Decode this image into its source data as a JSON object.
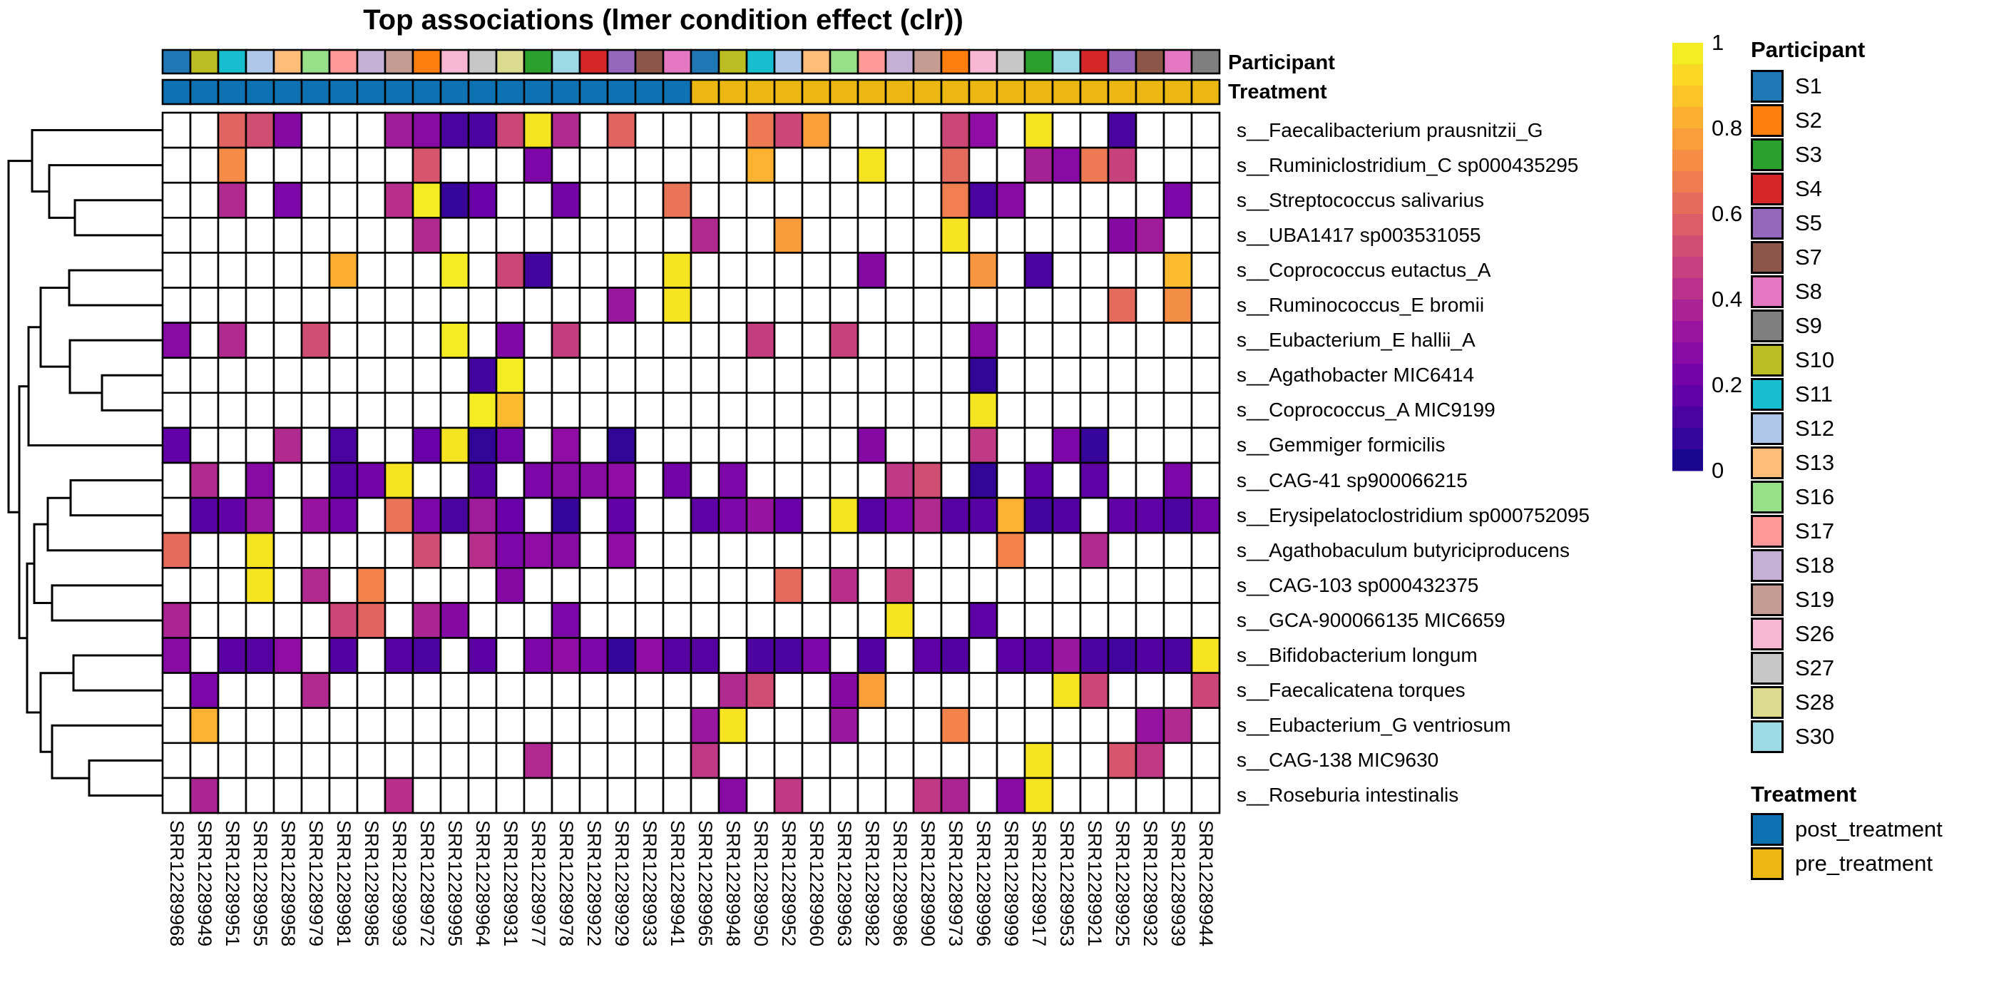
{
  "title": "Top associations (lmer condition effect (clr))",
  "annotations": {
    "participant_label": "Participant",
    "treatment_label": "Treatment",
    "column_participants": [
      "S1",
      "S10",
      "S11",
      "S12",
      "S13",
      "S16",
      "S17",
      "S18",
      "S19",
      "S2",
      "S26",
      "S27",
      "S28",
      "S3",
      "S30",
      "S4",
      "S5",
      "S7",
      "S8",
      "S1",
      "S10",
      "S11",
      "S12",
      "S13",
      "S16",
      "S17",
      "S18",
      "S19",
      "S2",
      "S26",
      "S27",
      "S3",
      "S30",
      "S4",
      "S5",
      "S7",
      "S8",
      "S9"
    ],
    "column_treatments": [
      "post_treatment",
      "post_treatment",
      "post_treatment",
      "post_treatment",
      "post_treatment",
      "post_treatment",
      "post_treatment",
      "post_treatment",
      "post_treatment",
      "post_treatment",
      "post_treatment",
      "post_treatment",
      "post_treatment",
      "post_treatment",
      "post_treatment",
      "post_treatment",
      "post_treatment",
      "post_treatment",
      "post_treatment",
      "pre_treatment",
      "pre_treatment",
      "pre_treatment",
      "pre_treatment",
      "pre_treatment",
      "pre_treatment",
      "pre_treatment",
      "pre_treatment",
      "pre_treatment",
      "pre_treatment",
      "pre_treatment",
      "pre_treatment",
      "pre_treatment",
      "pre_treatment",
      "pre_treatment",
      "pre_treatment",
      "pre_treatment",
      "pre_treatment",
      "pre_treatment"
    ]
  },
  "chart_data": {
    "type": "heatmap",
    "title": "Top associations (lmer condition effect (clr))",
    "colormap": "plasma",
    "value_range": [
      0,
      1
    ],
    "na_color": "#ffffff",
    "colormap_stops": [
      "#0d0887",
      "#41049d",
      "#6a00a8",
      "#8f0da4",
      "#b12a90",
      "#cc4778",
      "#e16462",
      "#f2844b",
      "#fca636",
      "#fcce25",
      "#f0f921"
    ],
    "columns": [
      "SRR12289968",
      "SRR12289949",
      "SRR12289951",
      "SRR12289955",
      "SRR12289958",
      "SRR12289979",
      "SRR12289981",
      "SRR12289985",
      "SRR12289993",
      "SRR12289972",
      "SRR12289995",
      "SRR12289964",
      "SRR12289931",
      "SRR12289977",
      "SRR12289978",
      "SRR12289922",
      "SRR12289929",
      "SRR12289933",
      "SRR12289941",
      "SRR12289965",
      "SRR12289948",
      "SRR12289950",
      "SRR12289952",
      "SRR12289960",
      "SRR12289963",
      "SRR12289982",
      "SRR12289986",
      "SRR12289990",
      "SRR12289973",
      "SRR12289996",
      "SRR12289999",
      "SRR12289917",
      "SRR12289953",
      "SRR12289921",
      "SRR12289925",
      "SRR12289932",
      "SRR12289939",
      "SRR12289944"
    ],
    "rows": [
      "s__Faecalibacterium prausnitzii_G",
      "s__Ruminiclostridium_C sp000435295",
      "s__Streptococcus salivarius",
      "s__UBA1417 sp003531055",
      "s__Coprococcus eutactus_A",
      "s__Ruminococcus_E bromii",
      "s__Eubacterium_E hallii_A",
      "s__Agathobacter MIC6414",
      "s__Coprococcus_A MIC9199",
      "s__Gemmiger formicilis",
      "s__CAG-41 sp900066215",
      "s__Erysipelatoclostridium sp000752095",
      "s__Agathobaculum butyriciproducens",
      "s__CAG-103 sp000432375",
      "s__GCA-900066135 MIC6659",
      "s__Bifidobacterium longum",
      "s__Faecalicatena torques",
      "s__Eubacterium_G ventriosum",
      "s__CAG-138 MIC9630",
      "s__Roseburia intestinalis"
    ],
    "matrix": [
      [
        null,
        null,
        0.6,
        0.52,
        0.27,
        null,
        null,
        null,
        0.35,
        0.28,
        0.12,
        0.13,
        0.5,
        0.95,
        0.4,
        null,
        0.6,
        null,
        null,
        null,
        null,
        0.67,
        0.5,
        0.78,
        null,
        null,
        null,
        null,
        0.5,
        0.3,
        null,
        0.95,
        null,
        null,
        0.12,
        null,
        null,
        null
      ],
      [
        null,
        null,
        0.72,
        null,
        null,
        null,
        null,
        null,
        null,
        0.55,
        null,
        null,
        null,
        0.25,
        null,
        null,
        null,
        null,
        null,
        null,
        null,
        0.83,
        null,
        null,
        null,
        0.95,
        null,
        null,
        0.62,
        null,
        null,
        0.37,
        0.28,
        0.67,
        0.48,
        null,
        null,
        null
      ],
      [
        null,
        null,
        0.4,
        null,
        0.25,
        null,
        null,
        null,
        0.42,
        0.97,
        0.08,
        0.2,
        null,
        null,
        0.23,
        null,
        null,
        null,
        0.65,
        null,
        null,
        null,
        null,
        null,
        null,
        null,
        null,
        null,
        0.68,
        0.12,
        0.28,
        null,
        null,
        null,
        null,
        null,
        0.25,
        null
      ],
      [
        null,
        null,
        null,
        null,
        null,
        null,
        null,
        null,
        null,
        0.4,
        null,
        null,
        null,
        null,
        null,
        null,
        null,
        null,
        null,
        0.4,
        null,
        null,
        0.77,
        null,
        null,
        null,
        null,
        null,
        0.95,
        null,
        null,
        null,
        null,
        null,
        0.27,
        0.35,
        null,
        null
      ],
      [
        null,
        null,
        null,
        null,
        null,
        null,
        0.82,
        null,
        null,
        null,
        0.97,
        null,
        0.5,
        0.1,
        null,
        null,
        null,
        null,
        0.95,
        null,
        null,
        null,
        null,
        null,
        null,
        0.27,
        null,
        null,
        null,
        0.75,
        null,
        0.12,
        null,
        null,
        null,
        null,
        0.85,
        null
      ],
      [
        null,
        null,
        null,
        null,
        null,
        null,
        null,
        null,
        null,
        null,
        null,
        null,
        null,
        null,
        null,
        null,
        0.33,
        null,
        0.95,
        null,
        null,
        null,
        null,
        null,
        null,
        null,
        null,
        null,
        null,
        null,
        null,
        null,
        null,
        null,
        0.62,
        null,
        0.73,
        null
      ],
      [
        0.28,
        null,
        0.4,
        null,
        null,
        0.52,
        null,
        null,
        null,
        null,
        0.97,
        null,
        0.26,
        null,
        0.47,
        null,
        null,
        null,
        null,
        null,
        null,
        0.47,
        null,
        null,
        0.48,
        null,
        null,
        null,
        null,
        0.28,
        null,
        null,
        null,
        null,
        null,
        null,
        null,
        null
      ],
      [
        null,
        null,
        null,
        null,
        null,
        null,
        null,
        null,
        null,
        null,
        null,
        0.1,
        0.97,
        null,
        null,
        null,
        null,
        null,
        null,
        null,
        null,
        null,
        null,
        null,
        null,
        null,
        null,
        null,
        null,
        0.07,
        null,
        null,
        null,
        null,
        null,
        null,
        null,
        null
      ],
      [
        null,
        null,
        null,
        null,
        null,
        null,
        null,
        null,
        null,
        null,
        null,
        0.97,
        0.85,
        null,
        null,
        null,
        null,
        null,
        null,
        null,
        null,
        null,
        null,
        null,
        null,
        null,
        null,
        null,
        null,
        0.95,
        null,
        null,
        null,
        null,
        null,
        null,
        null,
        null
      ],
      [
        0.18,
        null,
        null,
        null,
        0.4,
        null,
        0.12,
        null,
        null,
        0.2,
        0.95,
        0.07,
        0.22,
        null,
        0.3,
        null,
        0.07,
        null,
        null,
        null,
        null,
        null,
        null,
        null,
        null,
        0.27,
        null,
        null,
        null,
        0.45,
        null,
        null,
        0.25,
        0.08,
        null,
        null,
        null,
        null
      ],
      [
        null,
        0.4,
        null,
        0.28,
        null,
        null,
        0.15,
        0.22,
        0.95,
        null,
        null,
        0.15,
        null,
        0.25,
        0.28,
        0.28,
        0.3,
        null,
        0.22,
        null,
        0.25,
        null,
        null,
        null,
        null,
        null,
        0.45,
        0.52,
        null,
        0.07,
        null,
        0.17,
        null,
        0.17,
        null,
        null,
        0.25,
        null
      ],
      [
        null,
        0.15,
        0.18,
        0.33,
        null,
        0.32,
        0.22,
        null,
        0.65,
        0.25,
        0.12,
        0.35,
        0.2,
        null,
        0.08,
        null,
        0.18,
        null,
        null,
        0.17,
        0.25,
        0.32,
        0.2,
        null,
        0.95,
        0.15,
        0.25,
        0.4,
        0.15,
        0.15,
        0.83,
        0.1,
        0.14,
        null,
        0.18,
        0.17,
        0.13,
        0.22
      ],
      [
        0.62,
        null,
        null,
        0.95,
        null,
        null,
        null,
        null,
        null,
        0.52,
        null,
        0.42,
        0.25,
        0.3,
        0.28,
        null,
        0.3,
        null,
        null,
        null,
        null,
        null,
        null,
        null,
        null,
        null,
        null,
        null,
        null,
        null,
        0.7,
        null,
        null,
        0.4,
        null,
        null,
        null,
        null
      ],
      [
        null,
        null,
        null,
        0.95,
        null,
        0.4,
        null,
        0.7,
        null,
        null,
        null,
        null,
        0.27,
        null,
        null,
        null,
        null,
        null,
        null,
        null,
        null,
        null,
        0.62,
        null,
        0.42,
        null,
        0.48,
        null,
        null,
        null,
        null,
        null,
        null,
        null,
        null,
        null,
        null,
        null
      ],
      [
        0.38,
        null,
        null,
        null,
        null,
        null,
        0.5,
        0.6,
        null,
        0.38,
        0.27,
        null,
        null,
        null,
        0.25,
        null,
        null,
        null,
        null,
        null,
        null,
        null,
        null,
        null,
        null,
        null,
        0.95,
        null,
        null,
        0.17,
        null,
        null,
        null,
        null,
        null,
        null,
        null,
        null
      ],
      [
        0.28,
        null,
        0.16,
        0.15,
        0.3,
        null,
        0.14,
        null,
        0.15,
        0.13,
        null,
        0.16,
        null,
        0.25,
        0.3,
        0.25,
        0.08,
        0.3,
        0.15,
        0.15,
        null,
        0.13,
        0.13,
        0.25,
        null,
        0.14,
        null,
        0.17,
        0.14,
        null,
        0.16,
        0.15,
        0.33,
        0.13,
        0.1,
        0.14,
        0.13,
        0.95
      ],
      [
        null,
        0.25,
        null,
        null,
        null,
        0.4,
        null,
        null,
        null,
        null,
        null,
        null,
        null,
        null,
        null,
        null,
        null,
        null,
        null,
        null,
        0.4,
        0.52,
        null,
        null,
        0.27,
        0.78,
        null,
        null,
        null,
        null,
        null,
        null,
        0.95,
        0.5,
        null,
        null,
        null,
        0.5
      ],
      [
        null,
        0.83,
        null,
        null,
        null,
        null,
        null,
        null,
        null,
        null,
        null,
        null,
        null,
        null,
        null,
        null,
        null,
        null,
        null,
        0.33,
        0.95,
        null,
        null,
        null,
        0.33,
        null,
        null,
        null,
        0.7,
        null,
        null,
        null,
        null,
        null,
        null,
        0.32,
        0.4,
        null
      ],
      [
        null,
        null,
        null,
        null,
        null,
        null,
        null,
        null,
        null,
        null,
        null,
        null,
        null,
        0.4,
        null,
        null,
        null,
        null,
        null,
        0.45,
        null,
        null,
        null,
        null,
        null,
        null,
        null,
        null,
        null,
        null,
        null,
        0.95,
        null,
        null,
        0.55,
        0.45,
        null,
        null
      ],
      [
        null,
        0.38,
        null,
        null,
        null,
        null,
        null,
        null,
        0.42,
        null,
        null,
        null,
        null,
        null,
        null,
        null,
        null,
        null,
        null,
        null,
        0.28,
        null,
        0.45,
        null,
        null,
        null,
        null,
        0.45,
        0.38,
        null,
        0.28,
        0.95,
        null,
        null,
        null,
        null,
        null,
        null
      ]
    ]
  },
  "legends": {
    "colorbar": {
      "ticks": [
        "1",
        "0.8",
        "0.6",
        "0.4",
        "0.2",
        "0"
      ]
    },
    "participant": {
      "title": "Participant",
      "items": [
        {
          "label": "S1",
          "color": "#1f77b4"
        },
        {
          "label": "S2",
          "color": "#ff7f0e"
        },
        {
          "label": "S3",
          "color": "#2ca02c"
        },
        {
          "label": "S4",
          "color": "#d62728"
        },
        {
          "label": "S5",
          "color": "#9467bd"
        },
        {
          "label": "S7",
          "color": "#8c564b"
        },
        {
          "label": "S8",
          "color": "#e377c2"
        },
        {
          "label": "S9",
          "color": "#7f7f7f"
        },
        {
          "label": "S10",
          "color": "#bcbd22"
        },
        {
          "label": "S11",
          "color": "#17becf"
        },
        {
          "label": "S12",
          "color": "#aec7e8"
        },
        {
          "label": "S13",
          "color": "#ffbb78"
        },
        {
          "label": "S16",
          "color": "#98df8a"
        },
        {
          "label": "S17",
          "color": "#ff9896"
        },
        {
          "label": "S18",
          "color": "#c5b0d5"
        },
        {
          "label": "S19",
          "color": "#c49c94"
        },
        {
          "label": "S26",
          "color": "#f7b6d2"
        },
        {
          "label": "S27",
          "color": "#c7c7c7"
        },
        {
          "label": "S28",
          "color": "#dbdb8d"
        },
        {
          "label": "S30",
          "color": "#9edae5"
        }
      ]
    },
    "treatment": {
      "title": "Treatment",
      "items": [
        {
          "label": "post_treatment",
          "color": "#0e72b2"
        },
        {
          "label": "pre_treatment",
          "color": "#ecb713"
        }
      ]
    }
  }
}
